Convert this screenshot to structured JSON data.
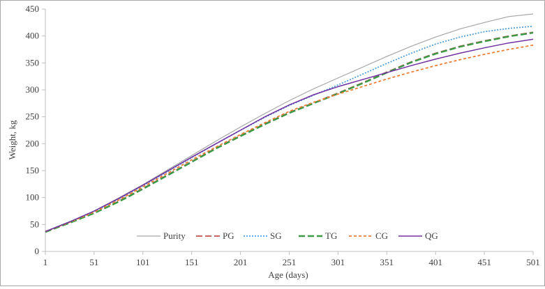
{
  "chart_data": {
    "type": "line",
    "title": "",
    "xlabel": "Age (days)",
    "ylabel": "Weight, kg",
    "xlim": [
      1,
      501
    ],
    "ylim": [
      0,
      450
    ],
    "x_ticks": [
      1,
      51,
      101,
      151,
      201,
      251,
      301,
      351,
      401,
      451,
      501
    ],
    "y_ticks": [
      0,
      50,
      100,
      150,
      200,
      250,
      300,
      350,
      400,
      450
    ],
    "grid": false,
    "legend_position": "bottom-inside",
    "x": [
      1,
      26,
      51,
      76,
      101,
      126,
      151,
      176,
      201,
      226,
      251,
      276,
      301,
      326,
      351,
      376,
      401,
      426,
      451,
      476,
      501
    ],
    "series": [
      {
        "name": "Purity",
        "color": "#a6a6a6",
        "dash": "solid",
        "values": [
          37,
          55,
          75,
          99,
          124,
          151,
          178,
          205,
          231,
          256,
          280,
          302,
          322,
          342,
          362,
          381,
          398,
          413,
          425,
          436,
          441
        ]
      },
      {
        "name": "PG",
        "color": "#c0504d",
        "dash": "long-dash",
        "values": [
          36,
          53,
          71,
          93,
          117,
          142,
          167,
          192,
          215,
          237,
          258,
          276,
          294,
          313,
          333,
          352,
          368,
          381,
          391,
          400,
          407
        ]
      },
      {
        "name": "SG",
        "color": "#4f9fd9",
        "dash": "dot",
        "values": [
          37,
          55,
          74,
          97,
          122,
          148,
          174,
          200,
          225,
          249,
          271,
          290,
          309,
          329,
          349,
          368,
          385,
          398,
          408,
          414,
          418
        ]
      },
      {
        "name": "TG",
        "color": "#3a9a45",
        "dash": "long-dash",
        "values": [
          36,
          53,
          71,
          92,
          116,
          141,
          166,
          191,
          214,
          236,
          257,
          275,
          293,
          312,
          332,
          351,
          367,
          380,
          390,
          399,
          406
        ]
      },
      {
        "name": "CG",
        "color": "#ed7d31",
        "dash": "short-dash",
        "values": [
          37,
          54,
          73,
          95,
          120,
          145,
          170,
          194,
          217,
          239,
          260,
          277,
          292,
          306,
          320,
          333,
          345,
          356,
          366,
          375,
          383
        ]
      },
      {
        "name": "QG",
        "color": "#7030a0",
        "dash": "solid",
        "values": [
          37,
          55,
          75,
          98,
          123,
          149,
          175,
          200,
          225,
          250,
          272,
          291,
          306,
          319,
          332,
          345,
          357,
          368,
          378,
          387,
          394
        ]
      }
    ]
  }
}
